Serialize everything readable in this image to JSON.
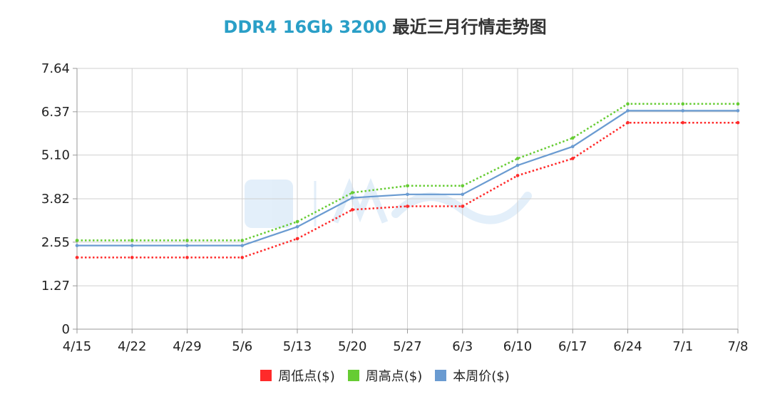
{
  "chart_data": {
    "type": "line",
    "title_accent": "DDR4 16Gb 3200",
    "title_rest": "最近三月行情走势图",
    "categories": [
      "4/15",
      "4/22",
      "4/29",
      "5/6",
      "5/13",
      "5/20",
      "5/27",
      "6/3",
      "6/10",
      "6/17",
      "6/24",
      "7/1",
      "7/8"
    ],
    "yticks": [
      "0",
      "1.27",
      "2.55",
      "3.82",
      "5.10",
      "6.37",
      "7.64"
    ],
    "ylim": [
      0,
      7.64
    ],
    "grid": true,
    "legend_position": "bottom",
    "series": [
      {
        "name": "周低点($)",
        "color": "#ff2a2a",
        "style": "dotted",
        "values": [
          2.1,
          2.1,
          2.1,
          2.1,
          2.65,
          3.5,
          3.6,
          3.6,
          4.5,
          5.0,
          6.05,
          6.05,
          6.05
        ]
      },
      {
        "name": "周高点($)",
        "color": "#66cc33",
        "style": "dotted",
        "values": [
          2.6,
          2.6,
          2.6,
          2.6,
          3.15,
          4.0,
          4.2,
          4.2,
          5.0,
          5.6,
          6.6,
          6.6,
          6.6
        ]
      },
      {
        "name": "本周价($)",
        "color": "#6a9bd1",
        "style": "solid",
        "values": [
          2.45,
          2.45,
          2.45,
          2.45,
          3.0,
          3.85,
          3.95,
          3.95,
          4.8,
          5.35,
          6.4,
          6.4,
          6.4
        ]
      }
    ]
  }
}
